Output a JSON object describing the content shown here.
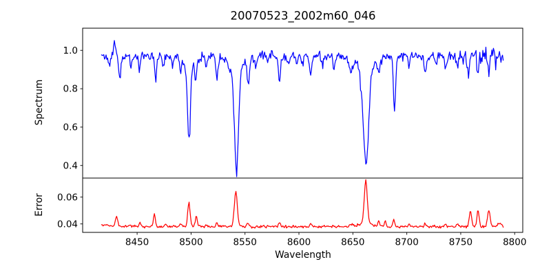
{
  "figure": {
    "title": "20070523_2002m60_046",
    "xlabel": "Wavelength",
    "background_color": "#ffffff",
    "spine_color": "#000000"
  },
  "chart_data": [
    {
      "type": "line",
      "name": "spectrum",
      "ylabel": "Spectrum",
      "line_color": "#0000ff",
      "xlim": [
        8399.5,
        8807.5
      ],
      "ylim": [
        0.3345,
        1.1155
      ],
      "yticks": [
        0.4,
        0.6,
        0.8,
        1.0
      ],
      "ytick_labels": [
        "0.4",
        "0.6",
        "0.8",
        "1.0"
      ],
      "show_xticks": false,
      "grid": false,
      "x_start": 8417,
      "x_end": 8790,
      "x_step": 0.7,
      "noise_seed": 11,
      "continuum": 0.972,
      "noise_sigma": 0.011,
      "wobble": [
        0.006,
        0.8,
        0.004,
        0.23
      ],
      "dip_probability": 0.05,
      "dip_max": 0.04,
      "right_noise_boost": {
        "from": 8735,
        "factor": 2.0,
        "ramp": 40
      },
      "up_spikes": [
        {
          "center": 8429,
          "height": 0.09,
          "sigma": 0.7
        }
      ],
      "absorption_lines": [
        {
          "center": 8424,
          "depth": 0.05,
          "sigma": 1.0
        },
        {
          "center": 8434,
          "depth": 0.145,
          "sigma": 0.9
        },
        {
          "center": 8444,
          "depth": 0.04,
          "sigma": 0.9
        },
        {
          "center": 8452,
          "depth": 0.065,
          "sigma": 0.9
        },
        {
          "center": 8467,
          "depth": 0.12,
          "sigma": 0.9
        },
        {
          "center": 8474,
          "depth": 0.04,
          "sigma": 0.9
        },
        {
          "center": 8483,
          "depth": 0.05,
          "sigma": 0.9
        },
        {
          "center": 8490,
          "depth": 0.065,
          "sigma": 0.9
        },
        {
          "center": 8498,
          "depth": 0.39,
          "sigma": 1.4
        },
        {
          "center": 8498,
          "depth": 0.04,
          "sigma": 5.0
        },
        {
          "center": 8504.2,
          "depth": 0.125,
          "sigma": 0.9
        },
        {
          "center": 8514,
          "depth": 0.06,
          "sigma": 0.9
        },
        {
          "center": 8524,
          "depth": 0.1,
          "sigma": 1.0
        },
        {
          "center": 8536,
          "depth": 0.05,
          "sigma": 1.5
        },
        {
          "center": 8542.1,
          "depth": 0.545,
          "sigma": 1.9
        },
        {
          "center": 8542.1,
          "depth": 0.055,
          "sigma": 7.0
        },
        {
          "center": 8553,
          "depth": 0.12,
          "sigma": 1.0
        },
        {
          "center": 8560,
          "depth": 0.05,
          "sigma": 0.9
        },
        {
          "center": 8571,
          "depth": 0.04,
          "sigma": 0.9
        },
        {
          "center": 8582,
          "depth": 0.13,
          "sigma": 1.0
        },
        {
          "center": 8590,
          "depth": 0.05,
          "sigma": 0.9
        },
        {
          "center": 8598,
          "depth": 0.06,
          "sigma": 0.9
        },
        {
          "center": 8611,
          "depth": 0.1,
          "sigma": 0.9
        },
        {
          "center": 8622,
          "depth": 0.06,
          "sigma": 0.9
        },
        {
          "center": 8632,
          "depth": 0.05,
          "sigma": 0.9
        },
        {
          "center": 8648,
          "depth": 0.07,
          "sigma": 1.4
        },
        {
          "center": 8662.1,
          "depth": 0.5,
          "sigma": 2.4
        },
        {
          "center": 8662.1,
          "depth": 0.07,
          "sigma": 9.0
        },
        {
          "center": 8674,
          "depth": 0.06,
          "sigma": 0.9
        },
        {
          "center": 8688.6,
          "depth": 0.27,
          "sigma": 1.0
        },
        {
          "center": 8702,
          "depth": 0.05,
          "sigma": 0.9
        },
        {
          "center": 8717,
          "depth": 0.1,
          "sigma": 1.0
        },
        {
          "center": 8727,
          "depth": 0.05,
          "sigma": 0.9
        },
        {
          "center": 8736,
          "depth": 0.08,
          "sigma": 0.9
        },
        {
          "center": 8747,
          "depth": 0.06,
          "sigma": 0.9
        },
        {
          "center": 8757,
          "depth": 0.11,
          "sigma": 0.9
        },
        {
          "center": 8766,
          "depth": 0.08,
          "sigma": 0.9
        },
        {
          "center": 8776,
          "depth": 0.1,
          "sigma": 0.9
        }
      ]
    },
    {
      "type": "line",
      "name": "error",
      "ylabel": "Error",
      "line_color": "#ff0000",
      "xlim": [
        8399.5,
        8807.5
      ],
      "ylim": [
        0.0337,
        0.0742
      ],
      "yticks": [
        0.04,
        0.06
      ],
      "ytick_labels": [
        "0.04",
        "0.06"
      ],
      "show_xticks": true,
      "xticks": [
        8450,
        8500,
        8550,
        8600,
        8650,
        8700,
        8750,
        8800
      ],
      "xtick_labels": [
        "8450",
        "8500",
        "8550",
        "8600",
        "8650",
        "8700",
        "8750",
        "8800"
      ],
      "grid": false,
      "x_start": 8417,
      "x_end": 8790,
      "x_step": 0.7,
      "noise_seed": 99,
      "baseline": 0.038,
      "noise_sigma": 0.0005,
      "error_peaks": [
        {
          "center": 8419,
          "height": 0.0015,
          "sigma": 4.0
        },
        {
          "center": 8431,
          "height": 0.0075,
          "sigma": 1.1
        },
        {
          "center": 8443,
          "height": 0.0015,
          "sigma": 0.9
        },
        {
          "center": 8453,
          "height": 0.0028,
          "sigma": 0.9
        },
        {
          "center": 8466,
          "height": 0.009,
          "sigma": 0.9
        },
        {
          "center": 8476,
          "height": 0.002,
          "sigma": 0.9
        },
        {
          "center": 8490,
          "height": 0.0018,
          "sigma": 0.9
        },
        {
          "center": 8498,
          "height": 0.018,
          "sigma": 1.1
        },
        {
          "center": 8505,
          "height": 0.008,
          "sigma": 0.9
        },
        {
          "center": 8514,
          "height": 0.0018,
          "sigma": 0.9
        },
        {
          "center": 8524,
          "height": 0.003,
          "sigma": 0.9
        },
        {
          "center": 8541.5,
          "height": 0.0265,
          "sigma": 1.4
        },
        {
          "center": 8553,
          "height": 0.0028,
          "sigma": 0.9
        },
        {
          "center": 8582,
          "height": 0.0022,
          "sigma": 0.9
        },
        {
          "center": 8611,
          "height": 0.0018,
          "sigma": 0.9
        },
        {
          "center": 8648,
          "height": 0.002,
          "sigma": 1.2
        },
        {
          "center": 8662,
          "height": 0.031,
          "sigma": 1.4
        },
        {
          "center": 8662,
          "height": 0.003,
          "sigma": 5.0
        },
        {
          "center": 8674,
          "height": 0.0038,
          "sigma": 0.9
        },
        {
          "center": 8680,
          "height": 0.004,
          "sigma": 0.9
        },
        {
          "center": 8688,
          "height": 0.0048,
          "sigma": 0.9
        },
        {
          "center": 8702,
          "height": 0.0015,
          "sigma": 0.9
        },
        {
          "center": 8717,
          "height": 0.002,
          "sigma": 0.9
        },
        {
          "center": 8736,
          "height": 0.0018,
          "sigma": 0.9
        },
        {
          "center": 8747,
          "height": 0.002,
          "sigma": 0.9
        },
        {
          "center": 8759,
          "height": 0.012,
          "sigma": 1.0
        },
        {
          "center": 8766,
          "height": 0.0125,
          "sigma": 1.0
        },
        {
          "center": 8776,
          "height": 0.012,
          "sigma": 1.2
        },
        {
          "center": 8786,
          "height": 0.0025,
          "sigma": 1.5
        }
      ]
    }
  ]
}
